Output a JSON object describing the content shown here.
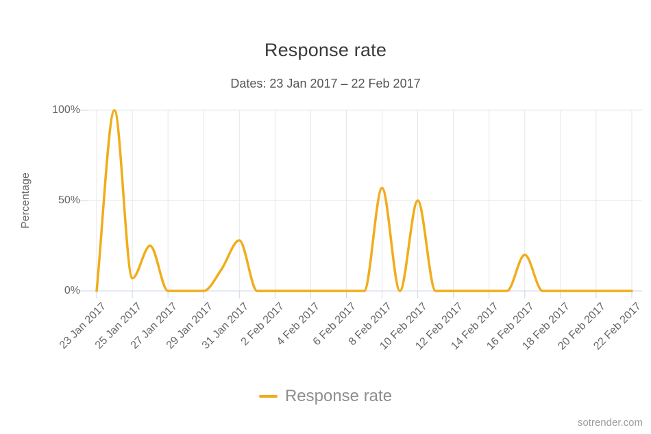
{
  "watermark": "sotrender.com",
  "chart_data": {
    "type": "line",
    "title": "Response rate",
    "subtitle": "Dates: 23 Jan 2017 – 22 Feb 2017",
    "xlabel": "",
    "ylabel": "Percentage",
    "ylim": [
      0,
      100
    ],
    "grid": true,
    "legend_position": "bottom",
    "line_style": "smooth-spline",
    "x_tick_every": 2,
    "y_ticks": [
      {
        "value": 0,
        "label": "0%"
      },
      {
        "value": 50,
        "label": "50%"
      },
      {
        "value": 100,
        "label": "100%"
      }
    ],
    "x_tick_labels": [
      "23 Jan 2017",
      "25 Jan 2017",
      "27 Jan 2017",
      "29 Jan 2017",
      "31 Jan 2017",
      "2 Feb 2017",
      "4 Feb 2017",
      "6 Feb 2017",
      "8 Feb 2017",
      "10 Feb 2017",
      "12 Feb 2017",
      "14 Feb 2017",
      "16 Feb 2017",
      "18 Feb 2017",
      "20 Feb 2017",
      "22 Feb 2017"
    ],
    "x": [
      "23 Jan 2017",
      "24 Jan 2017",
      "25 Jan 2017",
      "26 Jan 2017",
      "27 Jan 2017",
      "28 Jan 2017",
      "29 Jan 2017",
      "30 Jan 2017",
      "31 Jan 2017",
      "1 Feb 2017",
      "2 Feb 2017",
      "3 Feb 2017",
      "4 Feb 2017",
      "5 Feb 2017",
      "6 Feb 2017",
      "7 Feb 2017",
      "8 Feb 2017",
      "9 Feb 2017",
      "10 Feb 2017",
      "11 Feb 2017",
      "12 Feb 2017",
      "13 Feb 2017",
      "14 Feb 2017",
      "15 Feb 2017",
      "16 Feb 2017",
      "17 Feb 2017",
      "18 Feb 2017",
      "19 Feb 2017",
      "20 Feb 2017",
      "21 Feb 2017",
      "22 Feb 2017"
    ],
    "series": [
      {
        "name": "Response rate",
        "color": "#F0AD1B",
        "values": [
          0,
          100,
          7,
          25,
          0,
          0,
          0,
          12,
          28,
          0,
          0,
          0,
          0,
          0,
          0,
          0,
          57,
          0,
          50,
          0,
          0,
          0,
          0,
          0,
          20,
          0,
          0,
          0,
          0,
          0,
          0
        ]
      }
    ],
    "colors": {
      "grid": "#E6E6E6",
      "axis": "#CCD6EB",
      "title_text": "#3A3A3A",
      "subtitle_text": "#545454",
      "axis_label_text": "#666666",
      "legend_text": "#8E8E8E",
      "watermark_text": "#9B9B9B"
    }
  }
}
